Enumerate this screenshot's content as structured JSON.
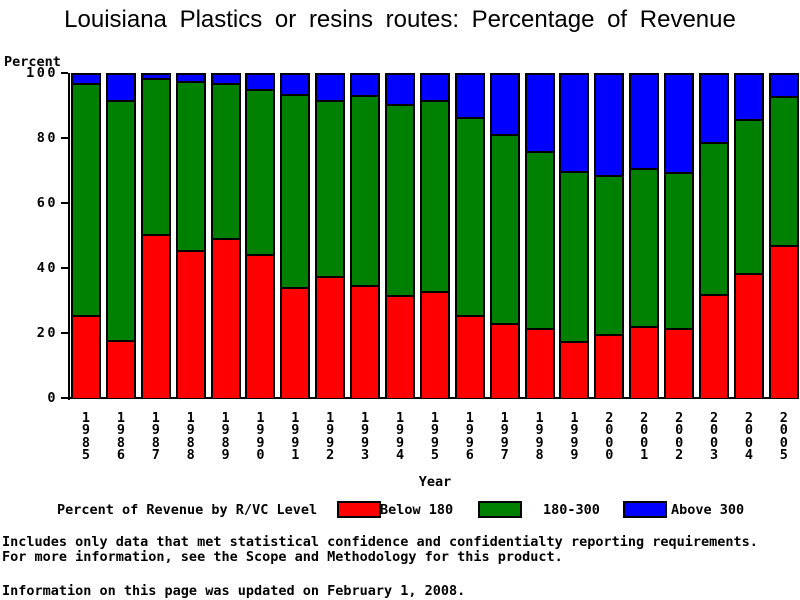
{
  "chart_data": {
    "type": "bar",
    "stacked": true,
    "title": "Louisiana Plastics or resins routes: Percentage of Revenue",
    "ylabel": "Percent",
    "xlabel": "Year",
    "ylim": [
      0,
      100
    ],
    "yticks": [
      0,
      20,
      40,
      60,
      80,
      100
    ],
    "grid": false,
    "legend_position": "bottom",
    "legend_title": "Percent of Revenue by R/VC Level",
    "categories": [
      "1985",
      "1986",
      "1987",
      "1988",
      "1989",
      "1990",
      "1991",
      "1992",
      "1993",
      "1994",
      "1995",
      "1996",
      "1997",
      "1998",
      "1999",
      "2000",
      "2001",
      "2002",
      "2003",
      "2004",
      "2005"
    ],
    "series": [
      {
        "name": "Below 180",
        "color": "#ff0000",
        "values": [
          25.6,
          17.9,
          50.4,
          45.5,
          49.3,
          44.4,
          34.2,
          37.6,
          34.7,
          31.8,
          33.0,
          25.4,
          23.1,
          21.5,
          17.5,
          19.8,
          22.1,
          21.4,
          32.1,
          38.6,
          47.0
        ]
      },
      {
        "name": "180-300",
        "color": "#008000",
        "values": [
          71.4,
          73.8,
          48.2,
          52.0,
          47.6,
          50.6,
          59.3,
          54.2,
          58.4,
          58.7,
          58.7,
          61.0,
          58.2,
          54.5,
          52.3,
          48.8,
          48.8,
          48.2,
          46.8,
          47.4,
          45.8
        ]
      },
      {
        "name": "Above 300",
        "color": "#0000ff",
        "values": [
          3.0,
          8.3,
          1.4,
          2.5,
          3.1,
          5.0,
          6.5,
          8.2,
          6.9,
          9.5,
          8.3,
          13.6,
          18.7,
          24.0,
          30.2,
          31.4,
          29.1,
          30.4,
          21.1,
          14.0,
          7.2
        ]
      }
    ]
  },
  "footnotes": {
    "line1": "Includes only data that met statistical confidence and confidentialty reporting requirements.",
    "line2": "For more information, see the Scope and Methodology for this product.",
    "updated": "Information on this page was updated on February 1, 2008."
  }
}
